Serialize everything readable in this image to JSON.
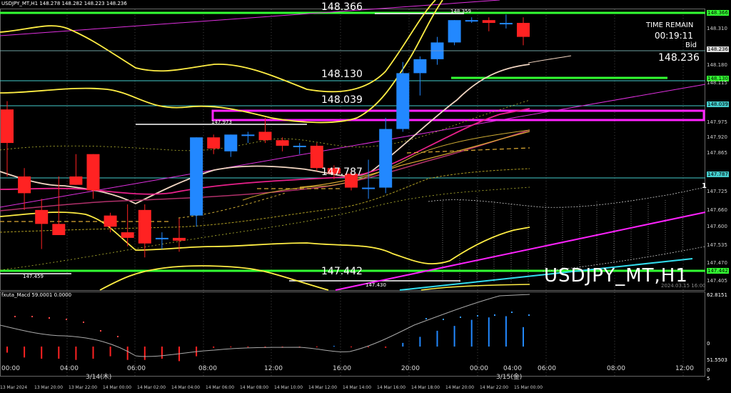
{
  "window": {
    "header": "USDJPY_MT,H1  148.278 148.282 148.223 148.236",
    "symbol_watermark": "USDJPY_MT,H1",
    "timestamp": "2024.03.15 16:00"
  },
  "info_panel": {
    "time_remain_label": "TIME REMAIN",
    "time_remain_value": "00:19:11",
    "bid_label": "Bid",
    "bid_value": "148.236"
  },
  "price_labels": {
    "l1": "148.366",
    "l2": "148.130",
    "l3": "148.039",
    "l4": "147.787",
    "l5": "147.442",
    "small1": "148.359",
    "small2": "147.973",
    "small3": "147.459",
    "small4": "147.430"
  },
  "price_axis": {
    "ticks": [
      "148.366",
      "148.310",
      "148.236",
      "148.180",
      "148.130",
      "148.115",
      "148.039",
      "147.975",
      "147.920",
      "147.865",
      "147.787",
      "147.725",
      "147.660",
      "147.600",
      "147.535",
      "147.470",
      "147.442",
      "147.405"
    ],
    "highlight": {
      "148.366": "#3f3",
      "148.236": "#ddd",
      "148.130": "#3f3",
      "148.039": "#4cc",
      "147.787": "#4cc",
      "147.442": "#3f3"
    }
  },
  "macd": {
    "label": "fxuta_Macd 59.0001 0.0000",
    "ticks": [
      "62.8151",
      "0",
      "51.5503"
    ]
  },
  "time_axis": {
    "major": [
      "00:00",
      "04:00",
      "06:00",
      "08:00",
      "12:00",
      "16:00",
      "20:00",
      "00:00",
      "04:00",
      "06:00",
      "08:00",
      "12:00",
      "16:00"
    ],
    "dates": [
      "3/14(木)",
      "3/15(金)"
    ],
    "minor": [
      "13 Mar 2024",
      "13 Mar 20:00",
      "13 Mar 22:00",
      "14 Mar 00:00",
      "14 Mar 02:00",
      "14 Mar 04:00",
      "14 Mar 06:00",
      "14 Mar 08:00",
      "14 Mar 10:00",
      "14 Mar 12:00",
      "14 Mar 14:00",
      "14 Mar 16:00",
      "14 Mar 18:00",
      "14 Mar 20:00",
      "14 Mar 22:00",
      "15 Mar 00:00"
    ],
    "right_marks": [
      "0",
      "5"
    ]
  },
  "misc": {
    "marker": "1"
  },
  "candles": [
    [
      148.02,
      148.05,
      147.9,
      147.78
    ],
    [
      147.78,
      147.81,
      147.72,
      147.66
    ],
    [
      147.66,
      147.7,
      147.61,
      147.52
    ],
    [
      147.61,
      147.78,
      147.57,
      147.85
    ],
    [
      147.78,
      147.86,
      147.75,
      147.83
    ],
    [
      147.86,
      147.86,
      147.73,
      147.7
    ],
    [
      147.64,
      147.65,
      147.6,
      147.58
    ],
    [
      147.58,
      147.68,
      147.56,
      147.53
    ],
    [
      147.66,
      147.68,
      147.54,
      147.49
    ],
    [
      147.56,
      147.58,
      147.56,
      147.52
    ],
    [
      147.56,
      147.63,
      147.55,
      147.51
    ],
    [
      147.64,
      147.92,
      147.92,
      147.6
    ],
    [
      147.92,
      147.93,
      147.88,
      147.86
    ],
    [
      147.87,
      147.93,
      147.93,
      147.85
    ],
    [
      147.93,
      147.94,
      147.93,
      147.9
    ],
    [
      147.94,
      147.99,
      147.91,
      147.9
    ],
    [
      147.91,
      147.92,
      147.89,
      147.87
    ],
    [
      147.89,
      147.9,
      147.89,
      147.86
    ],
    [
      147.89,
      147.9,
      147.81,
      147.8
    ],
    [
      147.81,
      147.82,
      147.79,
      147.77
    ],
    [
      147.79,
      147.8,
      147.74,
      147.73
    ],
    [
      147.74,
      147.84,
      147.74,
      147.7
    ],
    [
      147.74,
      147.99,
      147.95,
      147.72
    ],
    [
      147.95,
      148.19,
      148.15,
      147.94
    ],
    [
      148.15,
      148.21,
      148.2,
      148.07
    ],
    [
      148.2,
      148.28,
      148.26,
      148.18
    ],
    [
      148.26,
      148.34,
      148.34,
      148.25
    ],
    [
      148.34,
      148.35,
      148.34,
      148.33
    ],
    [
      148.34,
      148.35,
      148.33,
      148.3
    ],
    [
      148.33,
      148.36,
      148.33,
      148.31
    ],
    [
      148.33,
      148.35,
      148.28,
      148.25
    ]
  ],
  "macd_values": [
    -2.5,
    -4.5,
    -5.0,
    -5.0,
    -5.5,
    -5.0,
    -4.0,
    -5.5,
    -5.5,
    -5.0,
    -6.0,
    -4.0,
    -0.5,
    -0.3,
    -0.3,
    -0.2,
    -0.2,
    -0.3,
    -0.3,
    0.3,
    -0.2,
    -0.3,
    -0.5,
    1.5,
    4.0,
    6.5,
    8.5,
    11.0,
    12.0,
    12.5,
    8.0
  ],
  "colors": {
    "bull": "#2288ff",
    "bear": "#ff2222",
    "accent_green": "#33ff33",
    "magenta": "#ff22ff",
    "yellow": "#ffee44",
    "cyan": "#33cccc"
  }
}
